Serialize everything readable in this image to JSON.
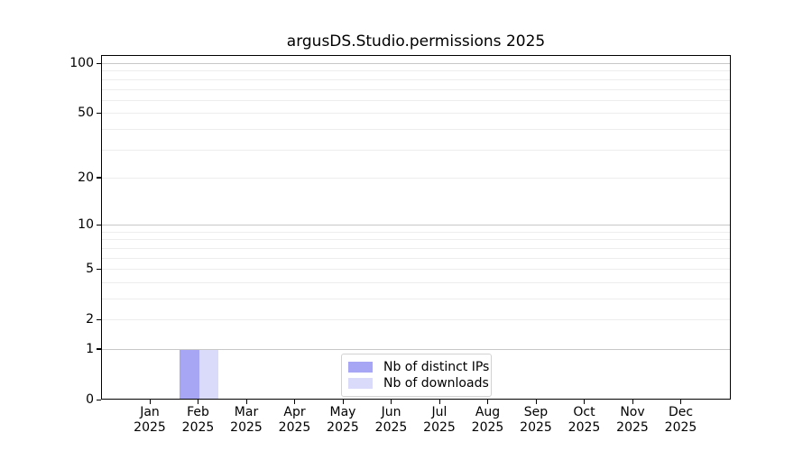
{
  "chart_data": {
    "type": "bar",
    "title": "argusDS.Studio.permissions 2025",
    "categories": [
      "Jan 2025",
      "Feb 2025",
      "Mar 2025",
      "Apr 2025",
      "May 2025",
      "Jun 2025",
      "Jul 2025",
      "Aug 2025",
      "Sep 2025",
      "Oct 2025",
      "Nov 2025",
      "Dec 2025"
    ],
    "x_axis": {
      "months": [
        "Jan",
        "Feb",
        "Mar",
        "Apr",
        "May",
        "Jun",
        "Jul",
        "Aug",
        "Sep",
        "Oct",
        "Nov",
        "Dec"
      ],
      "year": "2025"
    },
    "series": [
      {
        "name": "Nb of distinct IPs",
        "color": "#a6a6f4",
        "values": [
          0,
          1,
          0,
          0,
          0,
          0,
          0,
          0,
          0,
          0,
          0,
          0
        ]
      },
      {
        "name": "Nb of downloads",
        "color": "#dadafa",
        "values": [
          0,
          1,
          0,
          0,
          0,
          0,
          0,
          0,
          0,
          0,
          0,
          0
        ]
      }
    ],
    "y_axis": {
      "ticks": [
        0,
        1,
        2,
        5,
        10,
        20,
        50,
        100
      ],
      "scale": "log10(value+1)",
      "ylim": [
        0,
        112
      ],
      "major_gridlines": [
        1,
        10,
        100
      ],
      "minor_gridlines": [
        2,
        3,
        4,
        5,
        6,
        7,
        8,
        9,
        20,
        30,
        40,
        50,
        60,
        70,
        80,
        90
      ]
    },
    "grid": true,
    "legend_position": "lower center inside"
  },
  "colors": {
    "grid_major": "#c8c8c8",
    "grid_minor": "#ededed",
    "axis": "#000000",
    "background": "#ffffff"
  },
  "legend": {
    "items": [
      {
        "label": "Nb of distinct IPs",
        "color": "#a6a6f4"
      },
      {
        "label": "Nb of downloads",
        "color": "#dadafa"
      }
    ]
  }
}
